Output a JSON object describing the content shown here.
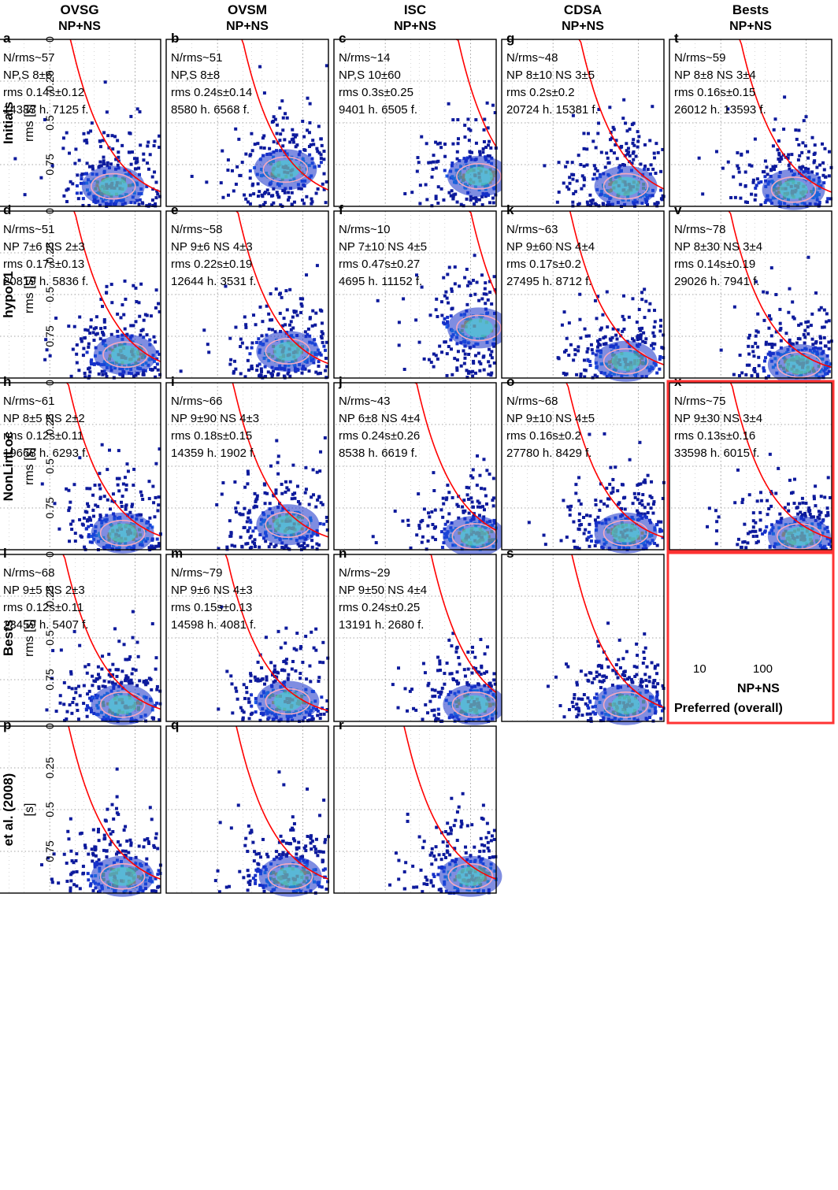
{
  "figure": {
    "accent_colors": {
      "panel_frame": "#000000",
      "fit_curve": "#ff0000",
      "contour": "#f4a9c0",
      "preferred_frame": "#ff3333",
      "density_low": "#0d1a9c",
      "density_high": "#ff2000"
    }
  },
  "columns": [
    {
      "id": "ovsg",
      "title": "OVSG",
      "subtitle": "NP+NS"
    },
    {
      "id": "ovsm",
      "title": "OVSM",
      "subtitle": "NP+NS"
    },
    {
      "id": "isc",
      "title": "ISC",
      "subtitle": "NP+NS"
    },
    {
      "id": "cdsa",
      "title": "CDSA",
      "subtitle": "NP+NS"
    },
    {
      "id": "bests",
      "title": "Bests",
      "subtitle": "NP+NS"
    }
  ],
  "rows": [
    {
      "id": "initials",
      "label": "Initials",
      "ylabel": "rms [s]"
    },
    {
      "id": "hypo71",
      "label": "hypo71",
      "ylabel": "rms [s]"
    },
    {
      "id": "nonlinloc",
      "label": "NonLinLoc",
      "ylabel": "rms [s]"
    },
    {
      "id": "bests",
      "label": "Bests",
      "ylabel": "rms [s]"
    },
    {
      "id": "et-al",
      "label": "et al. (2008)",
      "ylabel": "[s]"
    }
  ],
  "bottom_axis_label": "NP+NS",
  "preferred_label": "Preferred (overall)",
  "chart_data": [
    {
      "type": "heatmap",
      "panel": "a",
      "row": "Initials",
      "column": "OVSG",
      "nrms": "N/rms~57",
      "np": "NP,S 8±6",
      "rms": "rms 0.14s±0.12",
      "counts": "14383 h. 7125 f.",
      "x_scale": "log",
      "x_ticks": [
        10,
        100
      ],
      "y_ticks": [
        0,
        0.25,
        0.5,
        0.75
      ],
      "ylim": [
        0,
        1
      ],
      "grid": true,
      "density_center": [
        18,
        0.12
      ]
    },
    {
      "type": "heatmap",
      "panel": "b",
      "row": "Initials",
      "column": "OVSM",
      "nrms": "N/rms~51",
      "np": "NP,S 8±8",
      "rms": "rms 0.24s±0.14",
      "counts": "8580 h. 6568 f.",
      "x_scale": "log",
      "x_ticks": [
        10,
        100
      ],
      "y_ticks": [
        0,
        0.25,
        0.5,
        0.75
      ],
      "ylim": [
        0,
        1
      ],
      "grid": true,
      "density_center": [
        16,
        0.22
      ]
    },
    {
      "type": "heatmap",
      "panel": "c",
      "row": "Initials",
      "column": "ISC",
      "nrms": "N/rms~14",
      "np": "NP,S 10±60",
      "rms": "rms 0.3s±0.25",
      "counts": "9401 h. 6505 f.",
      "x_scale": "log",
      "x_ticks": [
        10,
        100
      ],
      "y_ticks": [
        0,
        0.25,
        0.5,
        0.75
      ],
      "ylim": [
        0,
        1
      ],
      "grid": true,
      "density_center": [
        8,
        0.18
      ]
    },
    {
      "type": "heatmap",
      "panel": "d",
      "row": "hypo71",
      "column": "OVSG",
      "nrms": "N/rms~51",
      "np": "NP 7±6 NS 2±3",
      "rms": "rms 0.17s±0.13",
      "counts": "20819 h. 5836 f.",
      "x_scale": "log",
      "x_ticks": [
        10,
        100
      ],
      "y_ticks": [
        0,
        0.25,
        0.5,
        0.75
      ],
      "ylim": [
        0,
        1
      ],
      "grid": true,
      "density_center": [
        13,
        0.14
      ]
    },
    {
      "type": "heatmap",
      "panel": "e",
      "row": "hypo71",
      "column": "OVSM",
      "nrms": "N/rms~58",
      "np": "NP 9±6 NS 4±3",
      "rms": "rms 0.22s±0.19",
      "counts": "12644 h. 3531 f.",
      "x_scale": "log",
      "x_ticks": [
        10,
        100
      ],
      "y_ticks": [
        0,
        0.25,
        0.5,
        0.75
      ],
      "ylim": [
        0,
        1
      ],
      "grid": true,
      "density_center": [
        15,
        0.16
      ]
    },
    {
      "type": "heatmap",
      "panel": "f",
      "row": "hypo71",
      "column": "ISC",
      "nrms": "N/rms~10",
      "np": "NP 7±10 NS 4±5",
      "rms": "rms 0.47s±0.27",
      "counts": "4695 h. 11152 f.",
      "x_scale": "log",
      "x_ticks": [
        10,
        100
      ],
      "y_ticks": [
        0,
        0.25,
        0.5,
        0.75
      ],
      "ylim": [
        0,
        1
      ],
      "grid": true,
      "density_center": [
        8,
        0.3
      ]
    },
    {
      "type": "heatmap",
      "panel": "g",
      "row": "Initials",
      "column": "CDSA",
      "nrms": "N/rms~48",
      "np": "NP 8±10 NS 3±5",
      "rms": "rms 0.2s±0.2",
      "counts": "20724 h. 15381 f.",
      "x_scale": "log",
      "x_ticks": [
        10,
        100
      ],
      "y_ticks": [
        0,
        0.25,
        0.5,
        0.75
      ],
      "ylim": [
        0,
        1
      ],
      "grid": true,
      "density_center": [
        14,
        0.12
      ]
    },
    {
      "type": "heatmap",
      "panel": "h",
      "row": "NonLinLoc",
      "column": "OVSG",
      "nrms": "N/rms~61",
      "np": "NP 8±5 NS 2±2",
      "rms": "rms 0.12s±0.11",
      "counts": "19668 h. 6293 f.",
      "x_scale": "log",
      "x_ticks": [
        10,
        100
      ],
      "y_ticks": [
        0,
        0.25,
        0.5,
        0.75
      ],
      "ylim": [
        0,
        1
      ],
      "grid": true,
      "density_center": [
        14,
        0.1
      ]
    },
    {
      "type": "heatmap",
      "panel": "i",
      "row": "NonLinLoc",
      "column": "OVSM",
      "nrms": "N/rms~66",
      "np": "NP 9±90 NS 4±3",
      "rms": "rms 0.18s±0.15",
      "counts": "14359 h. 1902 f.",
      "x_scale": "log",
      "x_ticks": [
        10,
        100
      ],
      "y_ticks": [
        0,
        0.25,
        0.5,
        0.75
      ],
      "ylim": [
        0,
        1
      ],
      "grid": true,
      "density_center": [
        15,
        0.15
      ]
    },
    {
      "type": "heatmap",
      "panel": "j",
      "row": "NonLinLoc",
      "column": "ISC",
      "nrms": "N/rms~43",
      "np": "NP 6±8 NS 4±4",
      "rms": "rms 0.24s±0.26",
      "counts": "8538 h. 6619 f.",
      "x_scale": "log",
      "x_ticks": [
        10,
        100
      ],
      "y_ticks": [
        0,
        0.25,
        0.5,
        0.75
      ],
      "ylim": [
        0,
        1
      ],
      "grid": true,
      "density_center": [
        9,
        0.08
      ]
    },
    {
      "type": "heatmap",
      "panel": "k",
      "row": "hypo71",
      "column": "CDSA",
      "nrms": "N/rms~63",
      "np": "NP 9±60 NS 4±4",
      "rms": "rms 0.17s±0.2",
      "counts": "27495 h. 8712 f.",
      "x_scale": "log",
      "x_ticks": [
        10,
        100
      ],
      "y_ticks": [
        0,
        0.25,
        0.5,
        0.75
      ],
      "ylim": [
        0,
        1
      ],
      "grid": true,
      "density_center": [
        14,
        0.1
      ]
    },
    {
      "type": "heatmap",
      "panel": "l",
      "row": "Bests",
      "column": "OVSG",
      "nrms": "N/rms~68",
      "np": "NP 9±5 NS 2±3",
      "rms": "rms 0.12s±0.11",
      "counts": "23459 h. 5407 f.",
      "x_scale": "log",
      "x_ticks": [
        10,
        100
      ],
      "y_ticks": [
        0,
        0.25,
        0.5,
        0.75
      ],
      "ylim": [
        0,
        1
      ],
      "grid": true,
      "density_center": [
        14,
        0.1
      ]
    },
    {
      "type": "heatmap",
      "panel": "m",
      "row": "Bests",
      "column": "OVSM",
      "nrms": "N/rms~79",
      "np": "NP 9±6 NS 4±3",
      "rms": "rms 0.15s±0.13",
      "counts": "14598 h. 4081 f.",
      "x_scale": "log",
      "x_ticks": [
        10,
        100
      ],
      "y_ticks": [
        0,
        0.25,
        0.5,
        0.75
      ],
      "ylim": [
        0,
        1
      ],
      "grid": true,
      "density_center": [
        15,
        0.12
      ]
    },
    {
      "type": "heatmap",
      "panel": "n",
      "row": "Bests",
      "column": "ISC",
      "nrms": "N/rms~29",
      "np": "NP 9±50 NS 4±4",
      "rms": "rms 0.24s±0.25",
      "counts": "13191 h. 2680 f.",
      "x_scale": "log",
      "x_ticks": [
        10,
        100
      ],
      "y_ticks": [
        0,
        0.25,
        0.5,
        0.75
      ],
      "ylim": [
        0,
        1
      ],
      "grid": true,
      "density_center": [
        9,
        0.1
      ]
    },
    {
      "type": "heatmap",
      "panel": "o",
      "row": "NonLinLoc",
      "column": "CDSA",
      "nrms": "N/rms~68",
      "np": "NP 9±10 NS 4±5",
      "rms": "rms 0.16s±0.2",
      "counts": "27780 h. 8429 f.",
      "x_scale": "log",
      "x_ticks": [
        10,
        100
      ],
      "y_ticks": [
        0,
        0.25,
        0.5,
        0.75
      ],
      "ylim": [
        0,
        1
      ],
      "grid": true,
      "density_center": [
        14,
        0.1
      ]
    },
    {
      "type": "heatmap",
      "panel": "p",
      "row": "et al. (2008)",
      "column": "OVSG",
      "nrms": "",
      "np": "",
      "rms": "",
      "counts": "",
      "x_scale": "log",
      "x_ticks": [
        10,
        100
      ],
      "y_ticks": [
        0,
        0.25,
        0.5,
        0.75
      ],
      "ylim": [
        0,
        1
      ],
      "grid": true,
      "density_center": [
        14,
        0.1
      ]
    },
    {
      "type": "heatmap",
      "panel": "q",
      "row": "et al. (2008)",
      "column": "OVSM",
      "nrms": "",
      "np": "",
      "rms": "",
      "counts": "",
      "x_scale": "log",
      "x_ticks": [
        10,
        100
      ],
      "y_ticks": [
        0,
        0.25,
        0.5,
        0.75
      ],
      "ylim": [
        0,
        1
      ],
      "grid": true,
      "density_center": [
        14,
        0.1
      ]
    },
    {
      "type": "heatmap",
      "panel": "r",
      "row": "et al. (2008)",
      "column": "ISC",
      "nrms": "",
      "np": "",
      "rms": "",
      "counts": "",
      "x_scale": "log",
      "x_ticks": [
        10,
        100
      ],
      "y_ticks": [
        0,
        0.25,
        0.5,
        0.75
      ],
      "ylim": [
        0,
        1
      ],
      "grid": true,
      "density_center": [
        10,
        0.1
      ]
    },
    {
      "type": "heatmap",
      "panel": "s",
      "row": "Bests",
      "column": "CDSA",
      "nrms": "",
      "np": "",
      "rms": "",
      "counts": "",
      "x_scale": "log",
      "x_ticks": [
        10,
        100
      ],
      "y_ticks": [
        0,
        0.25,
        0.5,
        0.75
      ],
      "ylim": [
        0,
        1
      ],
      "grid": true,
      "density_center": [
        14,
        0.1
      ]
    },
    {
      "type": "heatmap",
      "panel": "t",
      "row": "Initials",
      "column": "Bests",
      "nrms": "N/rms~59",
      "np": "NP 8±8 NS 3±4",
      "rms": "rms 0.16s±0.15",
      "counts": "26012 h. 13593 f.",
      "x_scale": "log",
      "x_ticks": [
        10,
        100
      ],
      "y_ticks": [
        0,
        0.25,
        0.5,
        0.75
      ],
      "ylim": [
        0,
        1
      ],
      "grid": true,
      "density_center": [
        14,
        0.1
      ]
    },
    {
      "type": "heatmap",
      "panel": "v",
      "row": "hypo71",
      "column": "Bests",
      "nrms": "N/rms~78",
      "np": "NP 8±30 NS 3±4",
      "rms": "rms 0.14s±0.19",
      "counts": "29026 h. 7941 f.",
      "x_scale": "log",
      "x_ticks": [
        10,
        100
      ],
      "y_ticks": [
        0,
        0.25,
        0.5,
        0.75
      ],
      "ylim": [
        0,
        1
      ],
      "grid": true,
      "density_center": [
        12,
        0.08
      ]
    },
    {
      "type": "heatmap",
      "panel": "x",
      "row": "NonLinLoc",
      "column": "Bests",
      "nrms": "N/rms~75",
      "np": "NP 9±30 NS 3±4",
      "rms": "rms 0.13s±0.16",
      "counts": "33598 h. 6015 f.",
      "x_scale": "log",
      "x_ticks": [
        10,
        100
      ],
      "y_ticks": [
        0,
        0.25,
        0.5,
        0.75
      ],
      "ylim": [
        0,
        1
      ],
      "grid": true,
      "density_center": [
        12,
        0.08
      ]
    }
  ]
}
